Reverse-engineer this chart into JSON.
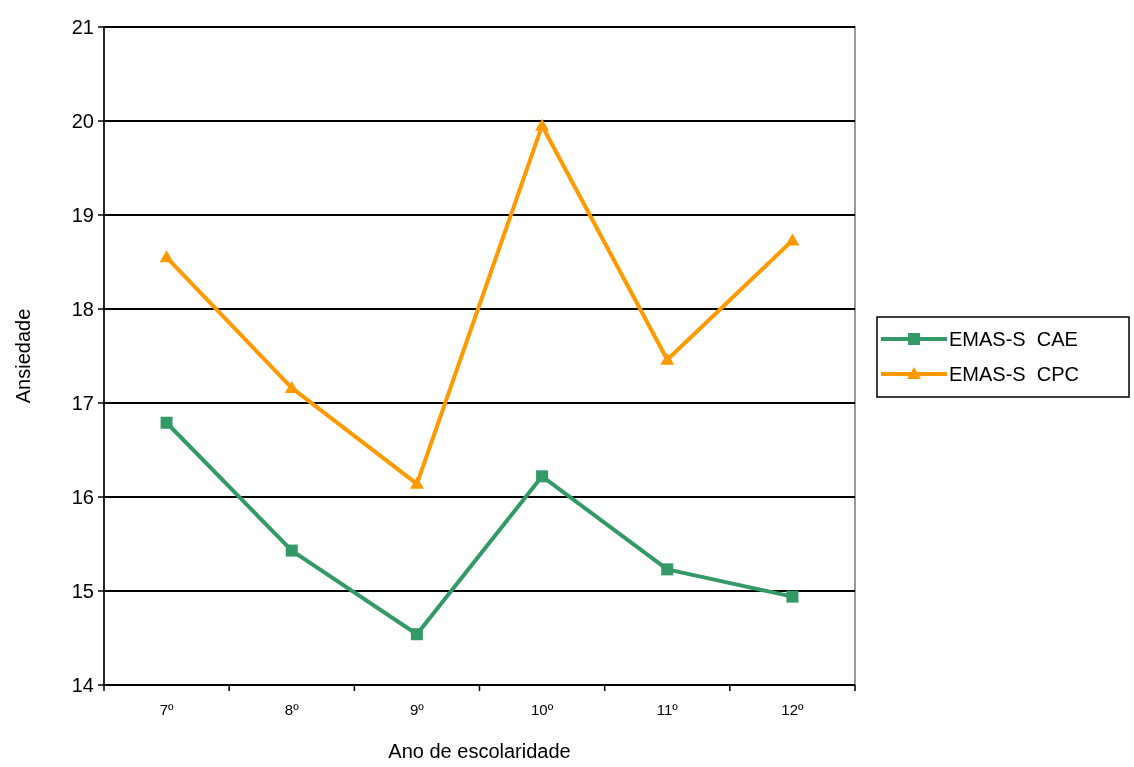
{
  "chart_data": {
    "type": "line",
    "xlabel": "Ano de escolaridade",
    "ylabel": "Ansiedade",
    "categories": [
      "7º",
      "8º",
      "9º",
      "10º",
      "11º",
      "12º"
    ],
    "series": [
      {
        "name": "EMAS-S  CAE",
        "color": "#339966",
        "marker": "square",
        "values": [
          16.79,
          15.43,
          14.54,
          16.22,
          15.23,
          14.94
        ]
      },
      {
        "name": "EMAS-S  CPC",
        "color": "#ff9900",
        "marker": "triangle",
        "values": [
          18.55,
          17.16,
          16.14,
          19.95,
          17.46,
          18.73
        ]
      }
    ],
    "ylim": [
      14,
      21
    ],
    "yticks": [
      14,
      15,
      16,
      17,
      18,
      19,
      20,
      21
    ],
    "grid": "y",
    "legend": "right"
  }
}
